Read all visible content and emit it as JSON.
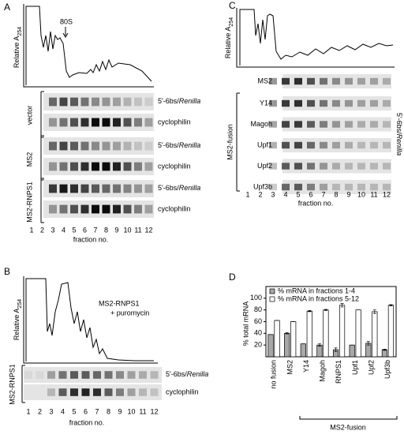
{
  "panel_a": {
    "label": "A",
    "y_label": "Relative A",
    "y_label_sub": "254",
    "peak_label": "80S",
    "groups": [
      "vector",
      "MS2",
      "MS2-RNPS1"
    ],
    "probe_prefix": "5'-6bs/",
    "probe_italic": "Renilla",
    "control": "cyclophilin",
    "fractions": [
      1,
      2,
      3,
      4,
      5,
      6,
      7,
      8,
      9,
      10,
      11,
      12
    ],
    "x_label": "fraction no."
  },
  "panel_b": {
    "label": "B",
    "y_label": "Relative A",
    "y_label_sub": "254",
    "condition": [
      "MS2-RNPS1",
      "+ puromycin"
    ],
    "group": "MS2-RNPS1",
    "probe_prefix": "5'-6bs/",
    "probe_italic": "Renilla",
    "control": "cyclophilin",
    "fractions": [
      1,
      2,
      3,
      4,
      5,
      6,
      7,
      8,
      9,
      10,
      11,
      12
    ],
    "x_label": "fraction no."
  },
  "panel_c": {
    "label": "C",
    "y_label": "Relative A",
    "y_label_sub": "254",
    "rows": [
      "MS2"
    ],
    "group": "MS2-fusion",
    "fusion_rows": [
      "Y14",
      "Magoh",
      "Upf1",
      "Upf2",
      "Upf3b"
    ],
    "probe_prefix": "5'-6bs/",
    "probe_italic": "Renilla",
    "fractions": [
      1,
      2,
      3,
      4,
      5,
      6,
      7,
      8,
      9,
      10,
      11,
      12
    ],
    "x_label": "fraction no."
  },
  "panel_d": {
    "label": "D"
  },
  "chart_data": {
    "type": "bar",
    "y_label": "% total mRNA",
    "categories": [
      "no fusion",
      "MS2",
      "Y14",
      "Magoh",
      "RNPS1",
      "Upf1",
      "Upf2",
      "Upf3b"
    ],
    "series": [
      {
        "name": "% mRNA in fractions 1-4",
        "color": "#a8a8a8",
        "values": [
          38,
          40,
          22,
          20,
          12,
          20,
          23,
          12
        ],
        "errors": [
          0,
          1,
          0,
          2,
          3,
          0,
          3,
          1
        ]
      },
      {
        "name": "% mRNA in fractions 5-12",
        "color": "#ffffff",
        "values": [
          62,
          60,
          78,
          80,
          88,
          80,
          77,
          88
        ],
        "errors": [
          0,
          0,
          1,
          1,
          3,
          0,
          3,
          1
        ]
      }
    ],
    "ylim": [
      0,
      120
    ],
    "yticks": [
      20,
      40,
      60,
      80,
      100
    ],
    "group_label": "MS2-fusion",
    "legend": "top-left"
  }
}
